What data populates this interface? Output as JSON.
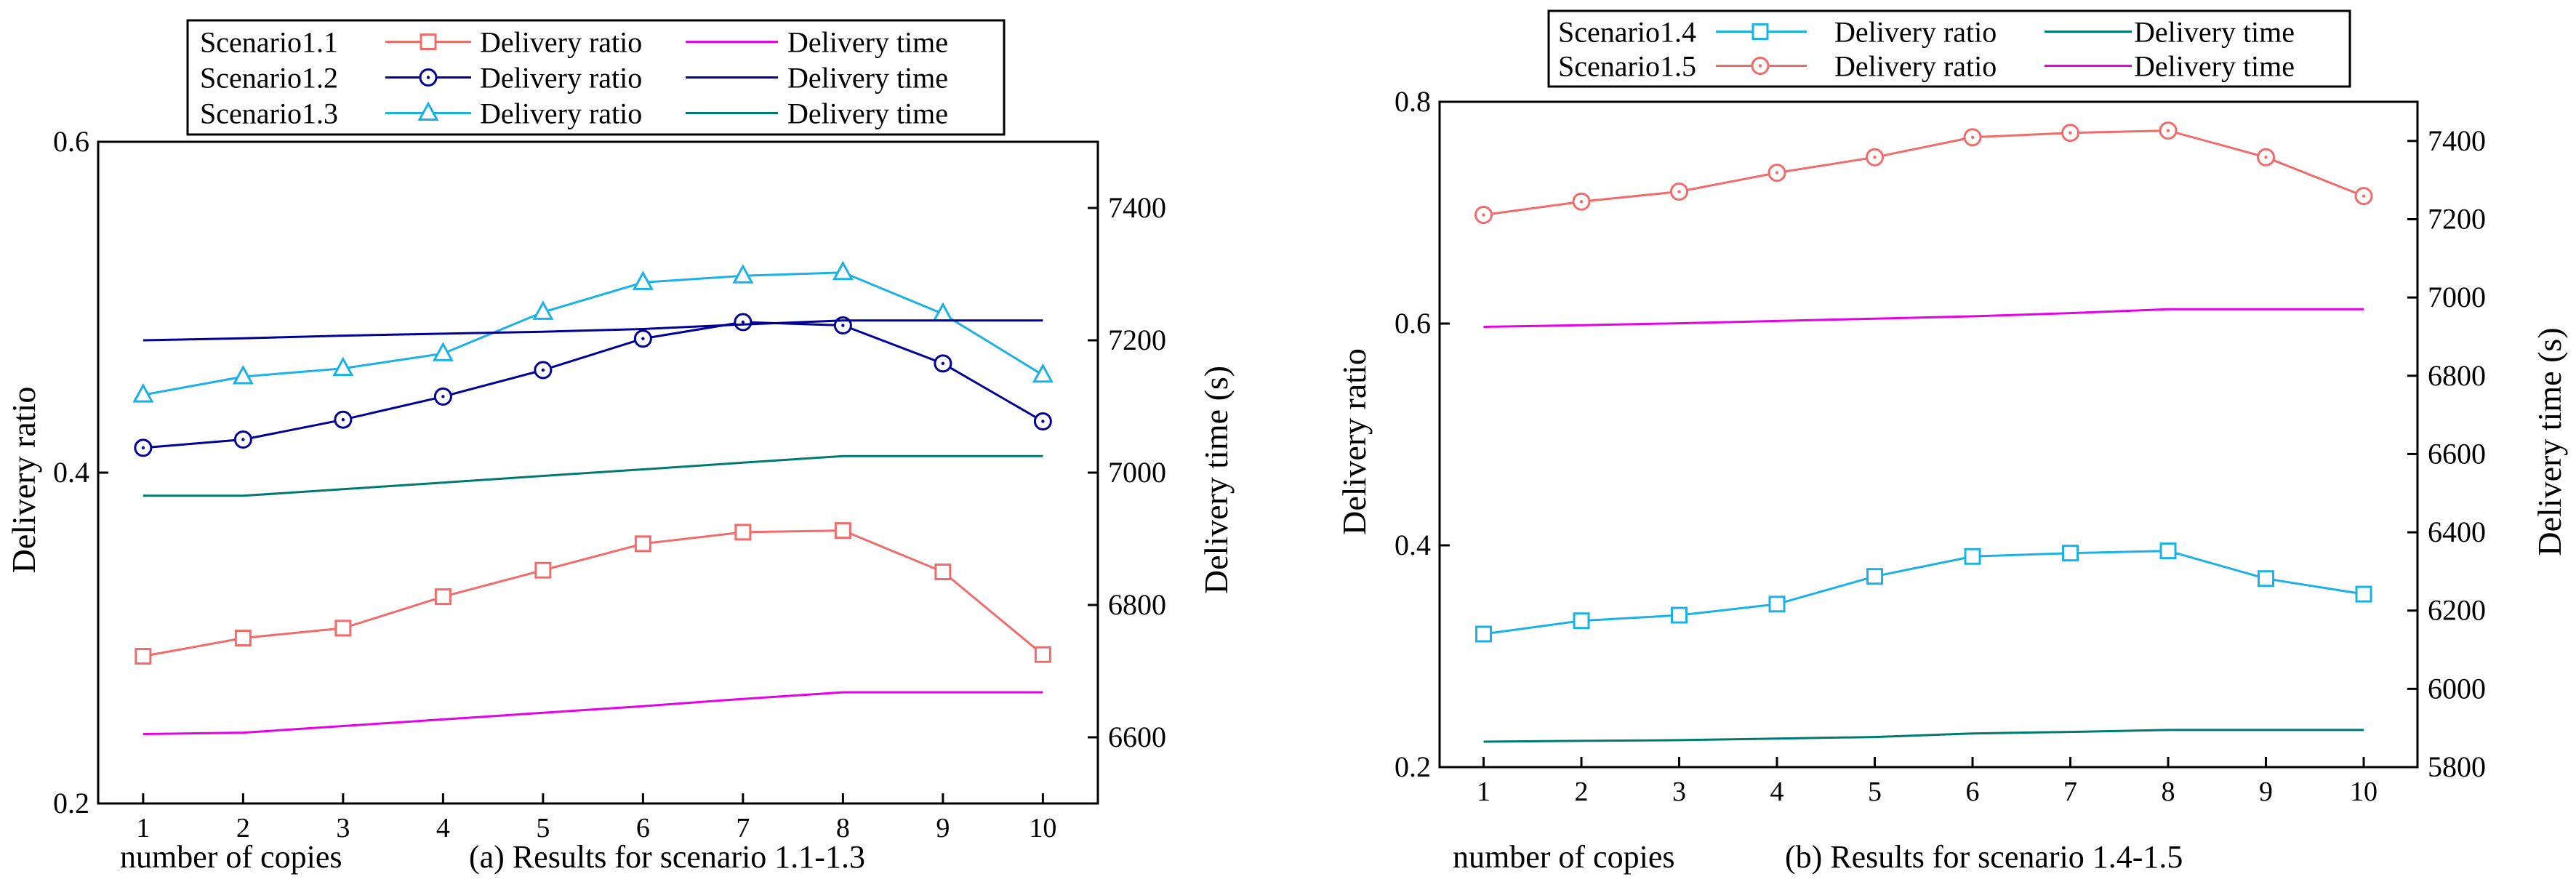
{
  "colors": {
    "s11": "#f26b6b",
    "s11_time": "#e600e6",
    "s12": "#000099",
    "s12_time": "#000099",
    "s13": "#1ab2e6",
    "s13_time": "#007a70",
    "s14": "#1ab2e6",
    "s14_time": "#007a70",
    "s15": "#f26b6b",
    "s15_time": "#e600e6"
  },
  "chart_data": [
    {
      "type": "line",
      "panel": "a",
      "xlabel": "number of copies",
      "caption": "(a) Results for scenario 1.1-1.3",
      "ylabel_left": "Delivery ratio",
      "ylabel_right": "Delivery time (s)",
      "x": [
        1,
        2,
        3,
        4,
        5,
        6,
        7,
        8,
        9,
        10
      ],
      "xlim": [
        0.55,
        10.55
      ],
      "ylim_left": [
        0.2,
        0.6
      ],
      "yticks_left": [
        "0.2",
        "0.4",
        "0.6"
      ],
      "ylim_right": [
        6500,
        7500
      ],
      "yticks_right": [
        "6600",
        "6800",
        "7000",
        "7200",
        "7400"
      ],
      "legend": [
        [
          "Scenario1.1",
          "Delivery ratio",
          "Delivery time"
        ],
        [
          "Scenario1.2",
          "Delivery ratio",
          "Delivery time"
        ],
        [
          "Scenario1.3",
          "Delivery ratio",
          "Delivery time"
        ]
      ],
      "series": [
        {
          "name": "Scenario1.1",
          "metric": "Delivery ratio",
          "axis": "left",
          "marker": "square",
          "color": "s11",
          "values": [
            0.289,
            0.3,
            0.306,
            0.325,
            0.341,
            0.357,
            0.364,
            0.365,
            0.34,
            0.29
          ]
        },
        {
          "name": "Scenario1.2",
          "metric": "Delivery ratio",
          "axis": "left",
          "marker": "circle",
          "color": "s12",
          "values": [
            0.415,
            0.42,
            0.432,
            0.446,
            0.462,
            0.481,
            0.491,
            0.489,
            0.466,
            0.431
          ]
        },
        {
          "name": "Scenario1.3",
          "metric": "Delivery ratio",
          "axis": "left",
          "marker": "triangle",
          "color": "s13",
          "values": [
            0.447,
            0.458,
            0.463,
            0.472,
            0.497,
            0.515,
            0.519,
            0.521,
            0.496,
            0.459
          ]
        },
        {
          "name": "Scenario1.1",
          "metric": "Delivery time",
          "axis": "right",
          "marker": "none",
          "color": "s11_time",
          "values": [
            6605,
            6607,
            6617,
            6627,
            6637,
            6647,
            6658,
            6668,
            6668,
            6668
          ]
        },
        {
          "name": "Scenario1.2",
          "metric": "Delivery time",
          "axis": "right",
          "marker": "none",
          "color": "s12_time",
          "values": [
            7200,
            7203,
            7207,
            7210,
            7213,
            7217,
            7224,
            7230,
            7230,
            7230
          ]
        },
        {
          "name": "Scenario1.3",
          "metric": "Delivery time",
          "axis": "right",
          "marker": "none",
          "color": "s13_time",
          "values": [
            6965,
            6965,
            6975,
            6985,
            6995,
            7005,
            7015,
            7025,
            7025,
            7025
          ]
        }
      ]
    },
    {
      "type": "line",
      "panel": "b",
      "xlabel": "number of copies",
      "caption": "(b) Results for scenario 1.4-1.5",
      "ylabel_left": "Delivery ratio",
      "ylabel_right": "Delivery time (s)",
      "x": [
        1,
        2,
        3,
        4,
        5,
        6,
        7,
        8,
        9,
        10
      ],
      "xlim": [
        0.55,
        10.55
      ],
      "ylim_left": [
        0.2,
        0.8
      ],
      "yticks_left": [
        "0.2",
        "0.4",
        "0.6",
        "0.8"
      ],
      "ylim_right": [
        5800,
        7500
      ],
      "yticks_right": [
        "5800",
        "6000",
        "6200",
        "6400",
        "6600",
        "6800",
        "7000",
        "7200",
        "7400"
      ],
      "legend": [
        [
          "Scenario1.4",
          "Delivery ratio",
          "Delivery time"
        ],
        [
          "Scenario1.5",
          "Delivery ratio",
          "Delivery time"
        ]
      ],
      "series": [
        {
          "name": "Scenario1.4",
          "metric": "Delivery ratio",
          "axis": "left",
          "marker": "square",
          "color": "s14",
          "values": [
            0.32,
            0.332,
            0.337,
            0.347,
            0.372,
            0.39,
            0.393,
            0.395,
            0.37,
            0.356
          ]
        },
        {
          "name": "Scenario1.5",
          "metric": "Delivery ratio",
          "axis": "left",
          "marker": "circle",
          "color": "s15",
          "values": [
            0.698,
            0.71,
            0.719,
            0.736,
            0.75,
            0.768,
            0.772,
            0.774,
            0.75,
            0.715
          ]
        },
        {
          "name": "Scenario1.4",
          "metric": "Delivery time",
          "axis": "right",
          "marker": "none",
          "color": "s14_time",
          "values": [
            5865,
            5867,
            5869,
            5873,
            5877,
            5886,
            5890,
            5895,
            5895,
            5895
          ]
        },
        {
          "name": "Scenario1.5",
          "metric": "Delivery time",
          "axis": "right",
          "marker": "none",
          "color": "s15_time",
          "values": [
            6925,
            6929,
            6934,
            6940,
            6946,
            6952,
            6960,
            6970,
            6970,
            6970
          ]
        }
      ]
    }
  ]
}
